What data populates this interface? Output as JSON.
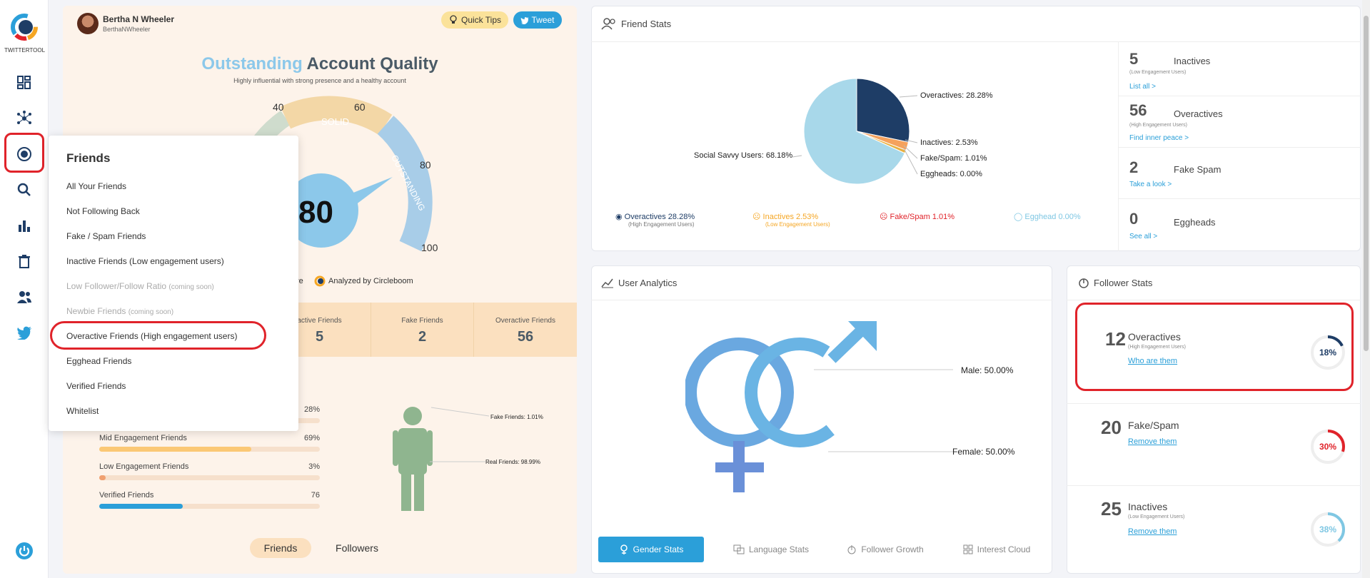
{
  "app": {
    "name": "TWITTERTOOL"
  },
  "profile": {
    "name": "Bertha N Wheeler",
    "handle": "BerthaNWheeler"
  },
  "header_buttons": {
    "quick_tips": "Quick Tips",
    "tweet": "Tweet"
  },
  "quality": {
    "title_highlight": "Outstanding",
    "title_rest": "Account Quality",
    "subtitle": "Highly influential with strong presence and a healthy account",
    "score": "80",
    "gauge_ticks": [
      "40",
      "60",
      "80",
      "100"
    ],
    "gauge_labels": {
      "solid": "SOLID",
      "outstanding": "OUTSTANDING"
    },
    "analyzed_prefix": "re",
    "analyzed_by": "Analyzed by Circleboom"
  },
  "friend_tiles": [
    {
      "label": "active Friends",
      "value": "5"
    },
    {
      "label": "Fake Friends",
      "value": "2"
    },
    {
      "label": "Overactive Friends",
      "value": "56"
    }
  ],
  "engagement_bars": [
    {
      "label": "",
      "value": "28%",
      "fraction": 0.28,
      "color": "#6dbf76"
    },
    {
      "label": "Mid Engagement Friends",
      "value": "69%",
      "fraction": 0.69,
      "color": "#fbc875"
    },
    {
      "label": "Low Engagement Friends",
      "value": "3%",
      "fraction": 0.03,
      "color": "#f0a070"
    },
    {
      "label": "Verified Friends",
      "value": "76",
      "fraction": 0.38,
      "color": "#2b9fd9"
    }
  ],
  "figure": {
    "fake": "Fake Friends: 1.01%",
    "real": "Real Friends: 98.99%"
  },
  "toggle": {
    "friends": "Friends",
    "followers": "Followers"
  },
  "friends_menu": {
    "title": "Friends",
    "items": [
      {
        "label": "All Your Friends",
        "note": ""
      },
      {
        "label": "Not Following Back",
        "note": ""
      },
      {
        "label": "Fake / Spam Friends",
        "note": ""
      },
      {
        "label": "Inactive Friends (Low engagement users)",
        "note": ""
      },
      {
        "label": "Low Follower/Follow Ratio",
        "note": "(coming soon)"
      },
      {
        "label": "Newbie Friends",
        "note": "(coming soon)"
      },
      {
        "label": "Overactive Friends (High engagement users)",
        "note": ""
      },
      {
        "label": "Egghead Friends",
        "note": ""
      },
      {
        "label": "Verified Friends",
        "note": ""
      },
      {
        "label": "Whitelist",
        "note": ""
      }
    ]
  },
  "friend_stats": {
    "title": "Friend Stats",
    "pie_labels": {
      "overactives": "Overactives: 28.28%",
      "inactives": "Inactives: 2.53%",
      "fake": "Fake/Spam: 1.01%",
      "eggheads": "Eggheads: 0.00%",
      "social": "Social Savvy Users: 68.18%"
    },
    "pie_values": [
      28.28,
      2.53,
      1.01,
      0.0,
      68.18
    ],
    "pie_colors": [
      "#1e3d66",
      "#f5a25d",
      "#e8b040",
      "#d9534f",
      "#a8d8ea"
    ],
    "legend": [
      {
        "text": "Overactives 28.28%",
        "sub": "(High Engagement Users)",
        "color": "#1e3d66"
      },
      {
        "text": "Inactives 2.53%",
        "sub": "(Low Engagement Users)",
        "color": "#f5a623"
      },
      {
        "text": "Fake/Spam 1.01%",
        "sub": "",
        "color": "#e0232a"
      },
      {
        "text": "Egghead 0.00%",
        "sub": "",
        "color": "#7fc7e3"
      }
    ],
    "side": [
      {
        "num": "5",
        "name": "Inactives",
        "sub": "(Low Engagement Users)",
        "link": "List all >"
      },
      {
        "num": "56",
        "name": "Overactives",
        "sub": "(High Engagement Users)",
        "link": "Find inner peace >"
      },
      {
        "num": "2",
        "name": "Fake Spam",
        "sub": "",
        "link": "Take a look >"
      },
      {
        "num": "0",
        "name": "Eggheads",
        "sub": "",
        "link": "See all >"
      }
    ]
  },
  "user_analytics": {
    "title": "User Analytics",
    "male": "Male: 50.00%",
    "female": "Female: 50.00%",
    "tabs": [
      "Gender Stats",
      "Language Stats",
      "Follower Growth",
      "Interest Cloud"
    ]
  },
  "follower_stats": {
    "title": "Follower Stats",
    "items": [
      {
        "num": "12",
        "name": "Overactives",
        "sub": "(High Engagement Users)",
        "link": "Who are them",
        "pct": "18%",
        "fraction": 0.18,
        "color": "#1e3d66"
      },
      {
        "num": "20",
        "name": "Fake/Spam",
        "sub": "",
        "link": "Remove them",
        "pct": "30%",
        "fraction": 0.3,
        "color": "#e0232a"
      },
      {
        "num": "25",
        "name": "Inactives",
        "sub": "(Low Engagement Users)",
        "link": "Remove them",
        "pct": "38%",
        "fraction": 0.38,
        "color": "#7fc7e3"
      }
    ]
  }
}
